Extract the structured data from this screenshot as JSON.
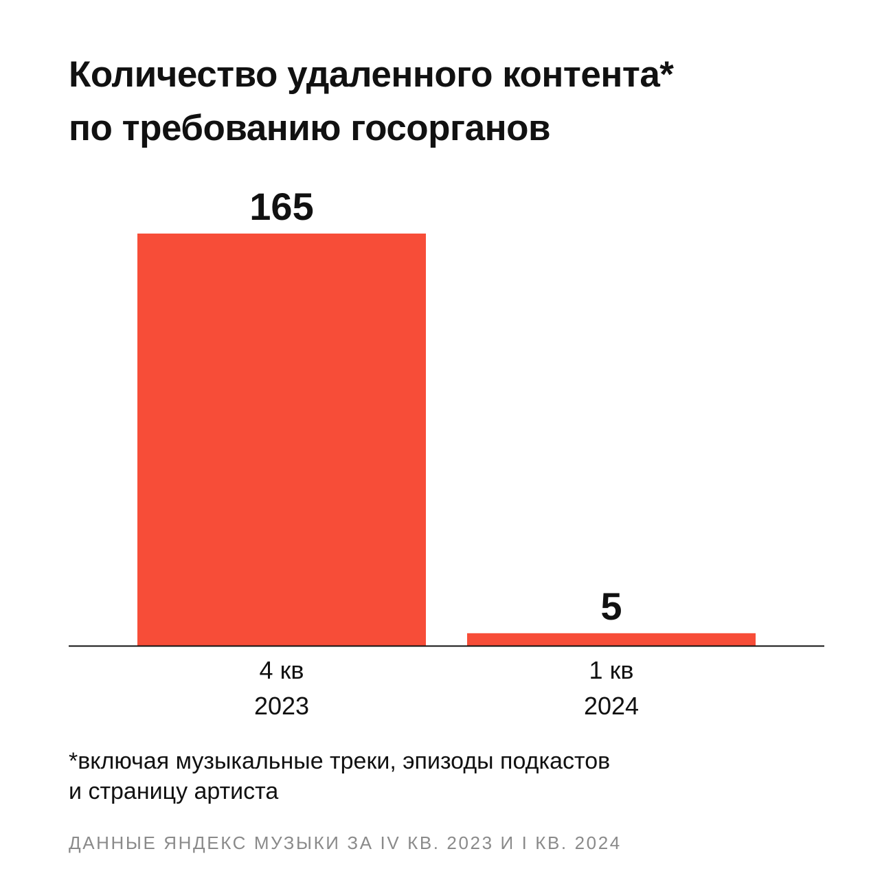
{
  "title": {
    "line1": "Количество удаленного контента*",
    "line2": "по требованию госорганов"
  },
  "chart_data": {
    "type": "bar",
    "categories": [
      [
        "4 кв",
        "2023"
      ],
      [
        "1 кв",
        "2024"
      ]
    ],
    "values": [
      165,
      5
    ],
    "data_labels": [
      "165",
      "5"
    ],
    "bar_color": "#f74d38",
    "axis_color": "#111111",
    "ylim": [
      0,
      165
    ],
    "grid": false,
    "legend": "none"
  },
  "footnote": {
    "line1": "*включая музыкальные треки, эпизоды подкастов",
    "line2": "и страницу артиста"
  },
  "source": "ДАННЫЕ ЯНДЕКС МУЗЫКИ ЗА IV КВ. 2023 И I КВ. 2024"
}
